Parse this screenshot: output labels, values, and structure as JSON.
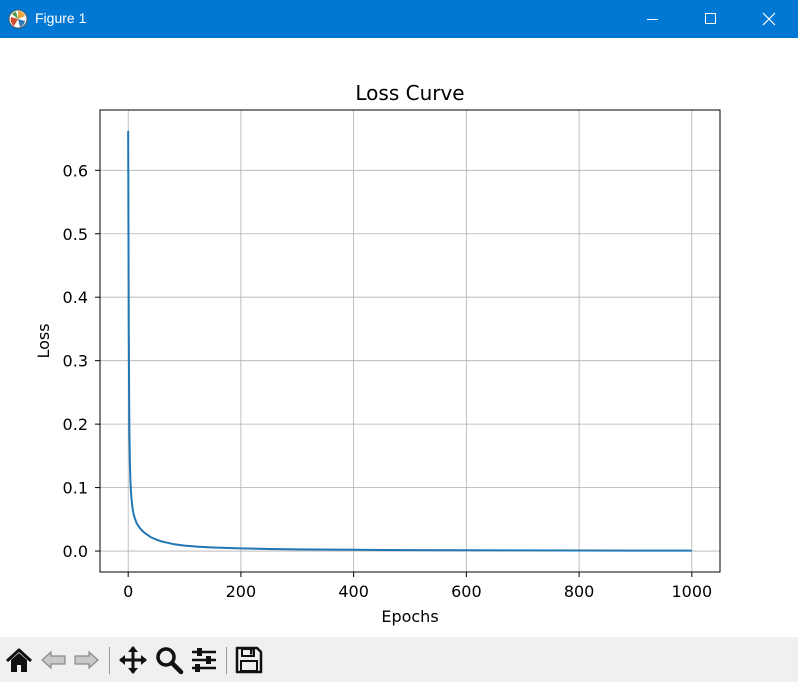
{
  "window": {
    "title": "Figure 1",
    "controls": [
      "minimize",
      "maximize",
      "close"
    ]
  },
  "toolbar": {
    "buttons": [
      "home-icon",
      "back-icon",
      "forward-icon",
      "pan-icon",
      "zoom-icon",
      "configure-subplots-icon",
      "save-icon"
    ]
  },
  "chart_data": {
    "type": "line",
    "title": "Loss Curve",
    "xlabel": "Epochs",
    "ylabel": "Loss",
    "xlim": [
      -50,
      1050
    ],
    "ylim": [
      -0.033,
      0.695
    ],
    "xticks": [
      0,
      200,
      400,
      600,
      800,
      1000
    ],
    "yticks": [
      0.0,
      0.1,
      0.2,
      0.3,
      0.4,
      0.5,
      0.6
    ],
    "ytick_labels": [
      "0.0",
      "0.1",
      "0.2",
      "0.3",
      "0.4",
      "0.5",
      "0.6"
    ],
    "grid": true,
    "line_color": "#1f77b4",
    "series": [
      {
        "x": [
          0,
          1,
          2,
          3,
          4,
          5,
          6,
          8,
          10,
          12,
          15,
          20,
          25,
          30,
          40,
          50,
          60,
          80,
          100,
          125,
          150,
          200,
          250,
          300,
          400,
          500,
          600,
          700,
          800,
          900,
          1000
        ],
        "y": [
          0.662,
          0.35,
          0.2,
          0.14,
          0.11,
          0.093,
          0.081,
          0.066,
          0.057,
          0.051,
          0.044,
          0.037,
          0.032,
          0.028,
          0.022,
          0.018,
          0.015,
          0.011,
          0.0085,
          0.0068,
          0.0057,
          0.0042,
          0.0033,
          0.0027,
          0.002,
          0.0015,
          0.0012,
          0.001,
          0.0008,
          0.0007,
          0.0006
        ]
      }
    ]
  }
}
